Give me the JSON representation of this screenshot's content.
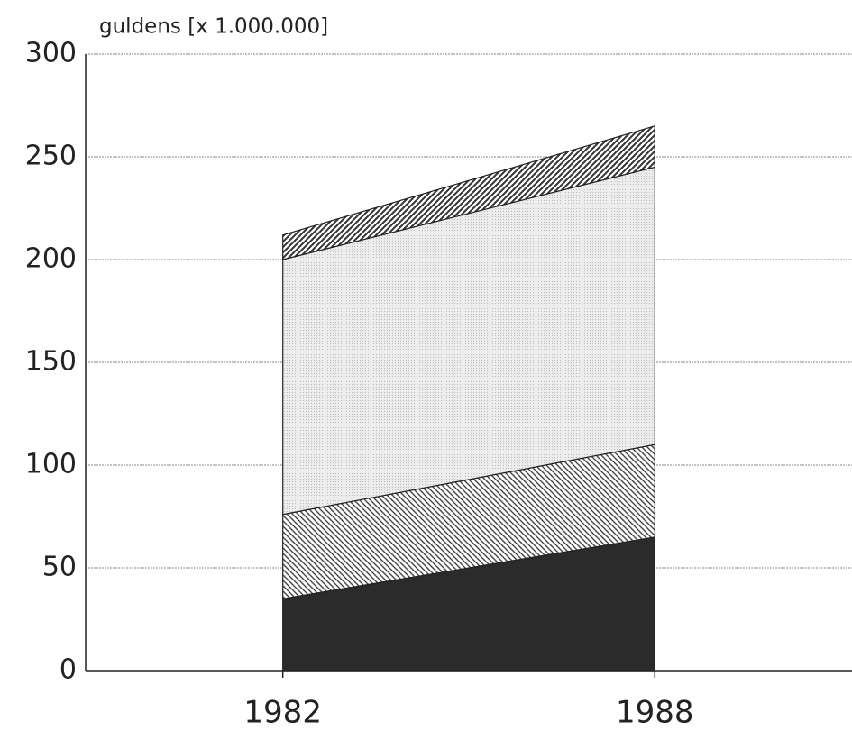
{
  "chart_data": {
    "type": "stacked_area",
    "y_label": "guldens [x 1.000.000]",
    "categories": [
      "1982",
      "1988"
    ],
    "series": [
      {
        "color": "#2b2b2b",
        "hatch": "solid",
        "values": [
          35,
          65
        ]
      },
      {
        "color": "#444444",
        "hatch": "diagonal-left",
        "values": [
          41,
          45
        ]
      },
      {
        "color": "#bdbdbd",
        "hatch": "dots",
        "values": [
          124,
          135
        ]
      },
      {
        "color": "#333333",
        "hatch": "diagonal-right",
        "values": [
          12,
          20
        ]
      }
    ],
    "ylim": [
      0,
      300
    ],
    "yticks": [
      0,
      50,
      100,
      150,
      200,
      250,
      300
    ],
    "grid": true
  }
}
